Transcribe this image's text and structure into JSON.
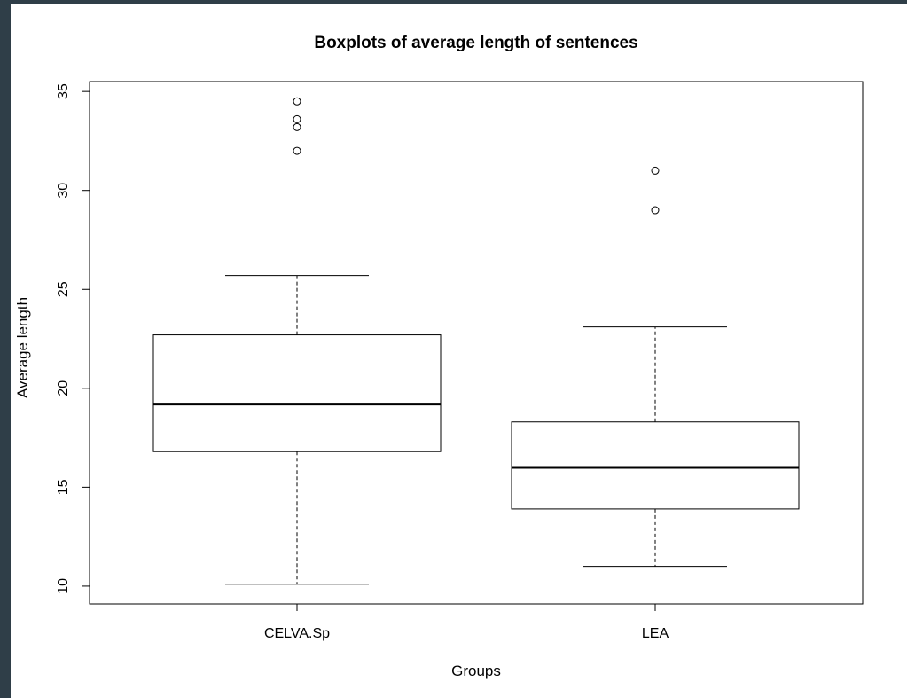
{
  "colors": {
    "background_frame": "#2f3e48",
    "panel": "#ffffff",
    "ink": "#000000"
  },
  "chart_data": {
    "type": "boxplot",
    "title": "Boxplots of average length of sentences",
    "xlabel": "Groups",
    "ylabel": "Average length",
    "ylim": [
      9.1,
      35.5
    ],
    "yticks": [
      10,
      15,
      20,
      25,
      30,
      35
    ],
    "ytick_labels": [
      "10",
      "15",
      "20",
      "25",
      "30",
      "35"
    ],
    "grid": false,
    "legend": "none",
    "categories": [
      "CELVA.Sp",
      "LEA"
    ],
    "boxes": [
      {
        "category": "CELVA.Sp",
        "whisker_low": 10.1,
        "q1": 16.8,
        "median": 19.2,
        "q3": 22.7,
        "whisker_high": 25.7,
        "outliers": [
          32.0,
          33.2,
          33.6,
          34.5
        ]
      },
      {
        "category": "LEA",
        "whisker_low": 11.0,
        "q1": 13.9,
        "median": 16.0,
        "q3": 18.3,
        "whisker_high": 23.1,
        "outliers": [
          29.0,
          31.0
        ]
      }
    ]
  }
}
